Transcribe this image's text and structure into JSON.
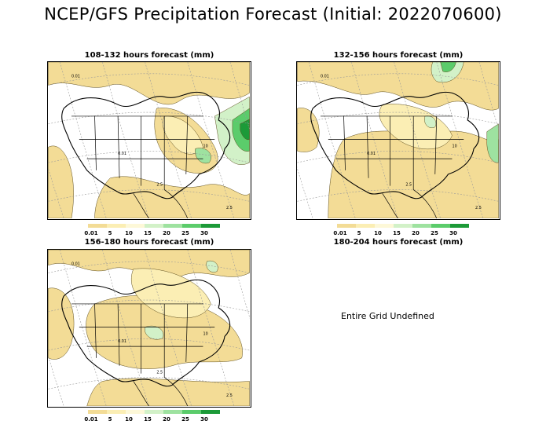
{
  "title": "NCEP/GFS Precipitation Forecast (Initial: 2022070600)",
  "panels": [
    {
      "title": "108-132 hours forecast (mm)"
    },
    {
      "title": "132-156 hours forecast (mm)"
    },
    {
      "title": "156-180 hours forecast (mm)"
    },
    {
      "title": "180-204 hours forecast (mm)",
      "message": "Entire Grid Undefined"
    }
  ],
  "legend": {
    "labels": [
      "0.01",
      "5",
      "10",
      "15",
      "20",
      "25",
      "30"
    ],
    "colors": [
      "#f3dc96",
      "#fbeeb4",
      "#fdf8d8",
      "#d2f1c8",
      "#9ee2a0",
      "#5bcc6b",
      "#1c9a38"
    ]
  },
  "map_contour_labels": [
    "0.01",
    "2.5",
    "10"
  ]
}
